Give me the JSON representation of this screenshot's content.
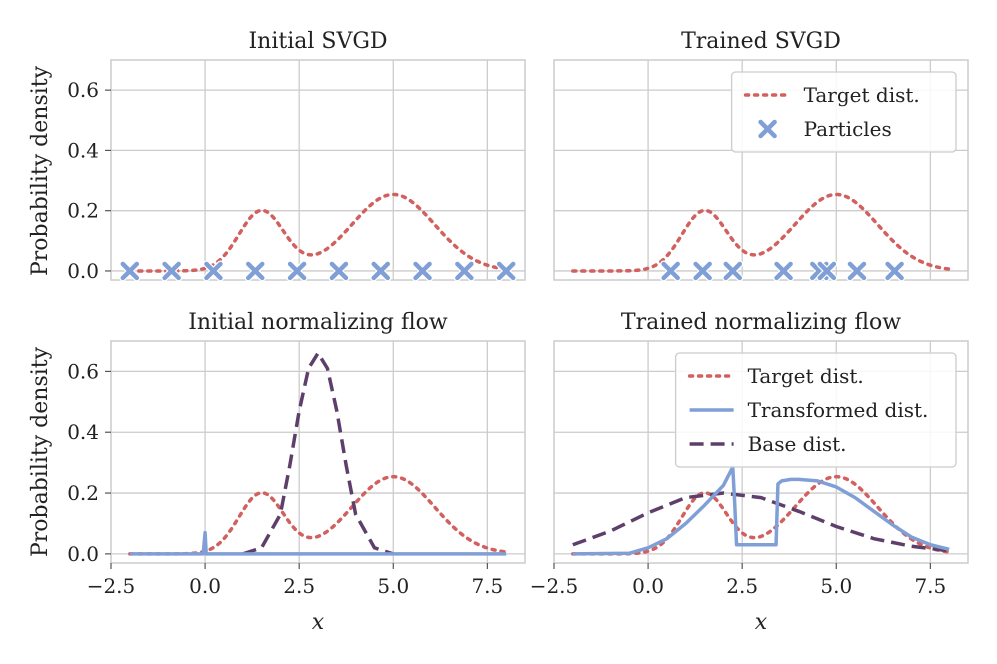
{
  "figure": {
    "ylabel": "Probability density",
    "xlabel": "x"
  },
  "colors": {
    "target": "#d1605e",
    "particles": "#7f9fd6",
    "transformed": "#7f9fd6",
    "base": "#5e3f6b",
    "grid": "#cccccc",
    "spine": "#cccccc"
  },
  "chart_data": [
    {
      "type": "line",
      "title": "Initial SVGD",
      "xlim": [
        -2.5,
        8.5
      ],
      "ylim": [
        -0.03,
        0.7
      ],
      "xticks": [
        -2.5,
        0.0,
        2.5,
        5.0,
        7.5
      ],
      "xtick_labels": [
        "−2.5",
        "0.0",
        "2.5",
        "5.0",
        "7.5"
      ],
      "yticks": [
        0.0,
        0.2,
        0.4,
        0.6
      ],
      "ytick_labels": [
        "0.0",
        "0.2",
        "0.4",
        "0.6"
      ],
      "show_xticklabels": false,
      "show_yticklabels": true,
      "show_ylabel": true,
      "show_xlabel": false,
      "legend": null,
      "series": [
        {
          "name": "Target dist.",
          "kind": "target",
          "x_range": [
            -2,
            8
          ]
        }
      ],
      "particles": [
        -2.0,
        -0.889,
        0.222,
        1.333,
        2.444,
        3.556,
        4.667,
        5.778,
        6.889,
        8.0
      ]
    },
    {
      "type": "line",
      "title": "Trained SVGD",
      "xlim": [
        -2.5,
        8.5
      ],
      "ylim": [
        -0.03,
        0.7
      ],
      "xticks": [
        -2.5,
        0.0,
        2.5,
        5.0,
        7.5
      ],
      "xtick_labels": [
        "−2.5",
        "0.0",
        "2.5",
        "5.0",
        "7.5"
      ],
      "yticks": [
        0.0,
        0.2,
        0.4,
        0.6
      ],
      "ytick_labels": [
        "0.0",
        "0.2",
        "0.4",
        "0.6"
      ],
      "show_xticklabels": false,
      "show_yticklabels": false,
      "show_ylabel": false,
      "show_xlabel": false,
      "legend": {
        "placement": "top-right",
        "entries": [
          {
            "label": "Target dist.",
            "kind": "target"
          },
          {
            "label": "Particles",
            "kind": "particles"
          }
        ]
      },
      "series": [
        {
          "name": "Target dist.",
          "kind": "target",
          "x_range": [
            -2,
            8
          ]
        }
      ],
      "particles": [
        0.6,
        1.45,
        2.25,
        3.6,
        4.55,
        4.75,
        5.55,
        6.55
      ]
    },
    {
      "type": "line",
      "title": "Initial normalizing flow",
      "xlim": [
        -2.5,
        8.5
      ],
      "ylim": [
        -0.03,
        0.7
      ],
      "xticks": [
        -2.5,
        0.0,
        2.5,
        5.0,
        7.5
      ],
      "xtick_labels": [
        "−2.5",
        "0.0",
        "2.5",
        "5.0",
        "7.5"
      ],
      "yticks": [
        0.0,
        0.2,
        0.4,
        0.6
      ],
      "ytick_labels": [
        "0.0",
        "0.2",
        "0.4",
        "0.6"
      ],
      "show_xticklabels": true,
      "show_yticklabels": true,
      "show_ylabel": true,
      "show_xlabel": true,
      "legend": null,
      "series": [
        {
          "name": "Target dist.",
          "kind": "target",
          "x_range": [
            -2,
            8
          ]
        },
        {
          "name": "Base dist.",
          "kind": "base",
          "x": [
            1.0,
            1.5,
            2.0,
            2.25,
            2.5,
            2.75,
            3.0,
            3.25,
            3.5,
            3.75,
            4.0,
            4.5,
            5.0
          ],
          "y": [
            0.0,
            0.02,
            0.13,
            0.29,
            0.47,
            0.61,
            0.66,
            0.61,
            0.47,
            0.29,
            0.13,
            0.02,
            0.0
          ]
        },
        {
          "name": "Transformed dist.",
          "kind": "transformed",
          "x": [
            -2.0,
            -0.05,
            0.0,
            0.03,
            0.06,
            8.0
          ],
          "y": [
            0.0,
            0.0,
            0.07,
            0.0,
            0.0,
            0.0
          ]
        }
      ],
      "particles": []
    },
    {
      "type": "line",
      "title": "Trained normalizing flow",
      "xlim": [
        -2.5,
        8.5
      ],
      "ylim": [
        -0.03,
        0.7
      ],
      "xticks": [
        -2.5,
        0.0,
        2.5,
        5.0,
        7.5
      ],
      "xtick_labels": [
        "−2.5",
        "0.0",
        "2.5",
        "5.0",
        "7.5"
      ],
      "yticks": [
        0.0,
        0.2,
        0.4,
        0.6
      ],
      "ytick_labels": [
        "0.0",
        "0.2",
        "0.4",
        "0.6"
      ],
      "show_xticklabels": true,
      "show_yticklabels": false,
      "show_ylabel": false,
      "show_xlabel": true,
      "legend": {
        "placement": "top-right",
        "entries": [
          {
            "label": "Target dist.",
            "kind": "target"
          },
          {
            "label": "Transformed dist.",
            "kind": "transformed"
          },
          {
            "label": "Base dist.",
            "kind": "base"
          }
        ]
      },
      "series": [
        {
          "name": "Target dist.",
          "kind": "target",
          "x_range": [
            -2,
            8
          ]
        },
        {
          "name": "Base dist.",
          "kind": "base",
          "x": [
            -2.0,
            -1.0,
            0.0,
            1.0,
            2.0,
            3.0,
            4.0,
            5.0,
            6.0,
            7.0,
            8.0
          ],
          "y": [
            0.03,
            0.075,
            0.135,
            0.185,
            0.2,
            0.185,
            0.14,
            0.09,
            0.05,
            0.025,
            0.01
          ]
        },
        {
          "name": "Transformed dist.",
          "kind": "transformed",
          "x": [
            -2.0,
            -0.5,
            0.0,
            0.5,
            1.0,
            1.5,
            2.0,
            2.25,
            2.3,
            2.35,
            2.4,
            3.0,
            3.4,
            3.45,
            3.55,
            3.8,
            4.0,
            4.5,
            5.0,
            5.5,
            6.0,
            6.5,
            7.0,
            7.5,
            8.0
          ],
          "y": [
            0.0,
            0.002,
            0.02,
            0.05,
            0.1,
            0.16,
            0.225,
            0.285,
            0.17,
            0.03,
            0.03,
            0.03,
            0.03,
            0.23,
            0.24,
            0.245,
            0.245,
            0.24,
            0.22,
            0.185,
            0.14,
            0.095,
            0.055,
            0.03,
            0.015
          ]
        }
      ],
      "particles": []
    }
  ]
}
